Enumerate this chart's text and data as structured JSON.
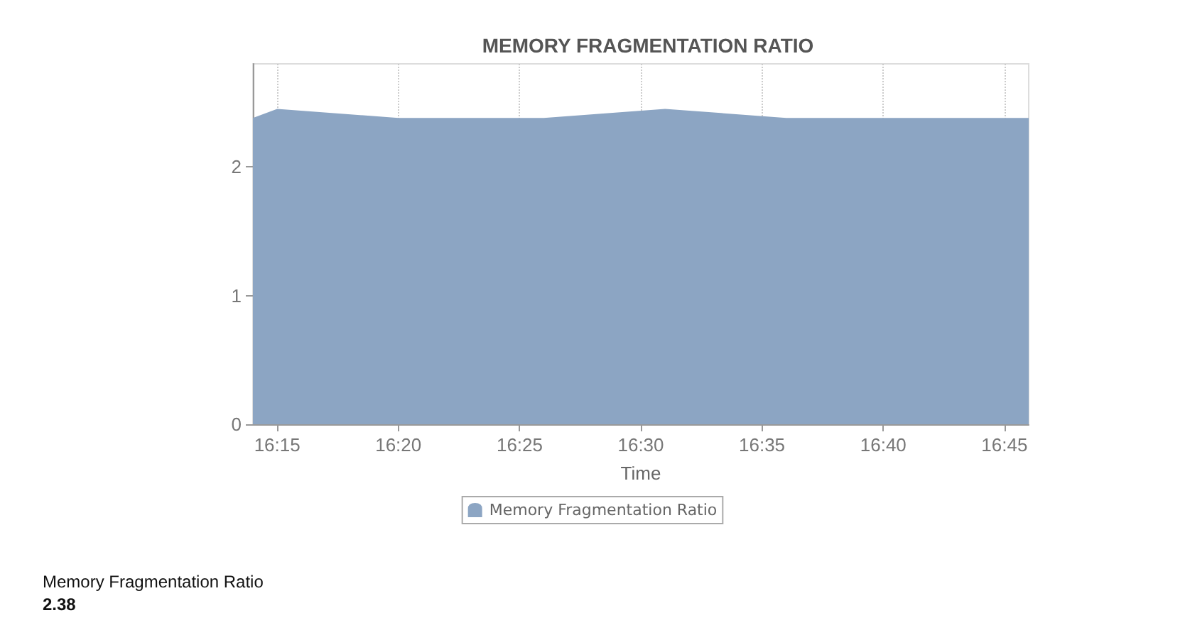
{
  "chart_data": {
    "type": "area",
    "title": "MEMORY FRAGMENTATION RATIO",
    "xlabel": "Time",
    "x": [
      16.2333,
      16.25,
      16.3333,
      16.4333,
      16.5167,
      16.6,
      16.7667
    ],
    "series": [
      {
        "name": "Memory Fragmentation Ratio",
        "color": "#8ca5c3",
        "values": [
          2.38,
          2.45,
          2.38,
          2.38,
          2.45,
          2.38,
          2.38
        ]
      }
    ],
    "xlim": [
      16.2333,
      16.7667
    ],
    "xticks": [
      {
        "value": 16.25,
        "label": "16:15"
      },
      {
        "value": 16.3333,
        "label": "16:20"
      },
      {
        "value": 16.4167,
        "label": "16:25"
      },
      {
        "value": 16.5,
        "label": "16:30"
      },
      {
        "value": 16.5833,
        "label": "16:35"
      },
      {
        "value": 16.6667,
        "label": "16:40"
      },
      {
        "value": 16.75,
        "label": "16:45"
      }
    ],
    "ylim": [
      0,
      2.8
    ],
    "yticks": [
      0,
      1,
      2
    ],
    "grid": true,
    "legend": "bottom",
    "annotations": [
      "Memory Fragmentation Ratio",
      "2.38"
    ]
  }
}
